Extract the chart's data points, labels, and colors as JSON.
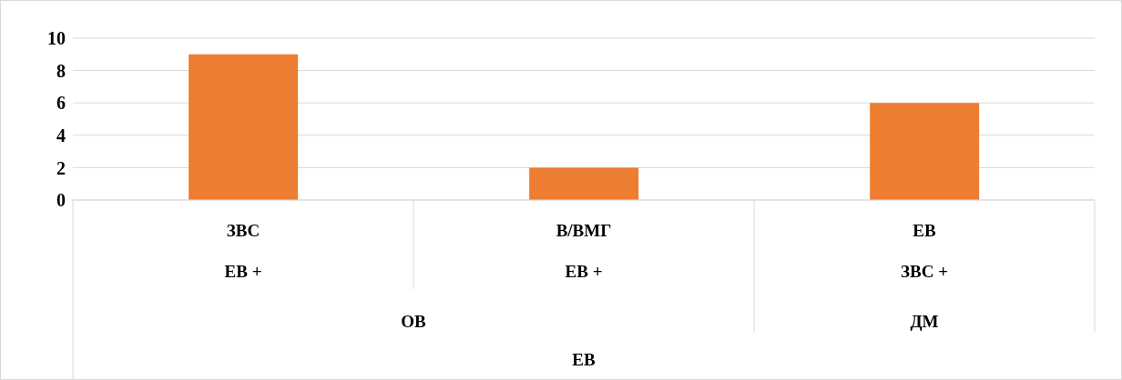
{
  "chart_data": {
    "type": "bar",
    "categories": [
      "ЗВС",
      "В/ВМГ",
      "ЕВ"
    ],
    "values": [
      9,
      2,
      6
    ],
    "color": "#ed7d31",
    "ylim": [
      0,
      10
    ],
    "yticks": [
      0,
      2,
      4,
      6,
      8,
      10
    ],
    "grid": "y",
    "annotations": [
      "ЕВ +",
      "ЕВ +",
      "ЗВС +",
      "ОВ",
      "ДМ",
      "ЕВ"
    ]
  }
}
